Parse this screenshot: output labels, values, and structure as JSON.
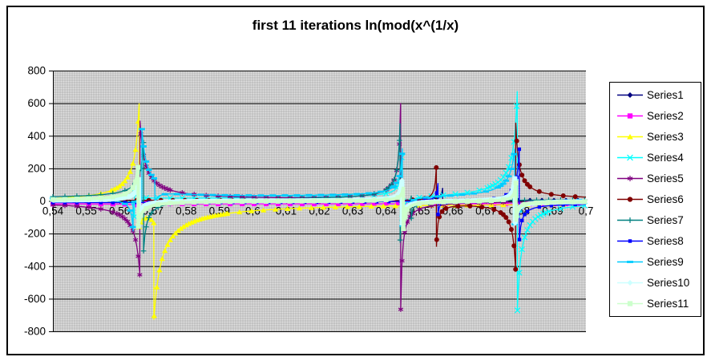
{
  "title": "first 11 iterations ln(mod(x^(1/x)",
  "chart_data": {
    "type": "line",
    "title": "first 11 iterations ln(mod(x^(1/x)",
    "legend_position": "right",
    "grid": "horizontal",
    "plot_bg_color": "#c2c2c2",
    "sampling_step": 0.0004,
    "x_axis": {
      "min": 0.54,
      "max": 0.7,
      "ticks": [
        {
          "v": 0.54,
          "label": "0,54"
        },
        {
          "v": 0.55,
          "label": "0,55"
        },
        {
          "v": 0.56,
          "label": "0,56"
        },
        {
          "v": 0.57,
          "label": "0,57"
        },
        {
          "v": 0.58,
          "label": "0,58"
        },
        {
          "v": 0.59,
          "label": "0,59"
        },
        {
          "v": 0.6,
          "label": "0,6"
        },
        {
          "v": 0.61,
          "label": "0,61"
        },
        {
          "v": 0.62,
          "label": "0,62"
        },
        {
          "v": 0.63,
          "label": "0,63"
        },
        {
          "v": 0.64,
          "label": "0,64"
        },
        {
          "v": 0.65,
          "label": "0,65"
        },
        {
          "v": 0.66,
          "label": "0,66"
        },
        {
          "v": 0.67,
          "label": "0,67"
        },
        {
          "v": 0.68,
          "label": "0,68"
        },
        {
          "v": 0.69,
          "label": "0,69"
        },
        {
          "v": 0.7,
          "label": "0,7"
        }
      ]
    },
    "y_axis": {
      "min": -800,
      "max": 800,
      "ticks": [
        {
          "v": 800,
          "label": "800"
        },
        {
          "v": 600,
          "label": "600"
        },
        {
          "v": 400,
          "label": "400"
        },
        {
          "v": 200,
          "label": "200"
        },
        {
          "v": 0,
          "label": "0"
        },
        {
          "v": -200,
          "label": "-200"
        },
        {
          "v": -400,
          "label": "-400"
        },
        {
          "v": -600,
          "label": "-600"
        },
        {
          "v": -800,
          "label": "-800"
        }
      ]
    },
    "series": [
      {
        "name": "Series1",
        "color": "#000080",
        "marker": "diamond",
        "width": 1.3,
        "baseline": 4,
        "spikes": [
          {
            "x": 0.657,
            "left": 80,
            "right": -50,
            "w": 0.0004
          }
        ]
      },
      {
        "name": "Series2",
        "color": "#FF00FF",
        "marker": "square",
        "width": 1.3,
        "baseline": -18,
        "spikes": [
          {
            "x": 0.5664,
            "left": -40,
            "right": 20,
            "w": 0.0002
          }
        ]
      },
      {
        "name": "Series3",
        "color": "#FFFF00",
        "marker": "triangle",
        "width": 1.3,
        "baseline": -8,
        "spikes": [
          {
            "x": 0.5659,
            "left": 650,
            "right": -120,
            "w": 0.0013
          },
          {
            "x": 0.5703,
            "left": -100,
            "right": -700,
            "w": 0.0022
          }
        ]
      },
      {
        "name": "Series4",
        "color": "#00FFFF",
        "marker": "x",
        "width": 1.3,
        "baseline": 8,
        "spikes": [
          {
            "x": 0.5645,
            "left": -120,
            "right": 40,
            "w": 0.0003
          },
          {
            "x": 0.6447,
            "left": 250,
            "right": -170,
            "w": 0.0004
          },
          {
            "x": 0.6794,
            "left": 680,
            "right": -690,
            "w": 0.0011
          }
        ]
      },
      {
        "name": "Series5",
        "color": "#800080",
        "marker": "asterisk",
        "width": 1.3,
        "baseline": -4,
        "spikes": [
          {
            "x": 0.5661,
            "left": -460,
            "right": 500,
            "w": 0.0014
          },
          {
            "x": 0.6444,
            "left": 620,
            "right": -670,
            "w": 0.0005
          }
        ]
      },
      {
        "name": "Series6",
        "color": "#800000",
        "marker": "circle",
        "width": 1.3,
        "baseline": 6,
        "spikes": [
          {
            "x": 0.6551,
            "left": 225,
            "right": -285,
            "w": 0.0004
          },
          {
            "x": 0.6789,
            "left": -430,
            "right": 490,
            "w": 0.0009
          }
        ]
      },
      {
        "name": "Series7",
        "color": "#008080",
        "marker": "plus",
        "width": 1.3,
        "baseline": 12,
        "spikes": [
          {
            "x": 0.5672,
            "left": 350,
            "right": -330,
            "w": 0.0009
          },
          {
            "x": 0.6442,
            "left": 480,
            "right": -260,
            "w": 0.0006
          },
          {
            "x": 0.6476,
            "left": 70,
            "right": -75,
            "w": 0.0002
          }
        ]
      },
      {
        "name": "Series8",
        "color": "#0000FF",
        "marker": "square_small",
        "width": 1.3,
        "baseline": -12,
        "spikes": [
          {
            "x": 0.6556,
            "left": 120,
            "right": -80,
            "w": 0.0003
          },
          {
            "x": 0.68,
            "left": 340,
            "right": -230,
            "w": 0.0007
          }
        ]
      },
      {
        "name": "Series9",
        "color": "#00CCFF",
        "marker": "dash",
        "width": 1.3,
        "baseline": 16,
        "spikes": [
          {
            "x": 0.5641,
            "left": -210,
            "right": -30,
            "w": 0.0005
          },
          {
            "x": 0.5667,
            "left": -20,
            "right": 430,
            "w": 0.0014
          },
          {
            "x": 0.5706,
            "left": 0,
            "right": -140,
            "w": 0.0018
          },
          {
            "x": 0.6449,
            "left": 300,
            "right": -190,
            "w": 0.0006
          },
          {
            "x": 0.6786,
            "left": 310,
            "right": -160,
            "w": 0.0014
          }
        ]
      },
      {
        "name": "Series10",
        "color": "#CCFFFF",
        "marker": "diamond",
        "width": 6,
        "baseline": 0,
        "spikes": [
          {
            "x": 0.5658,
            "left": 150,
            "right": -120,
            "w": 0.0006
          },
          {
            "x": 0.6448,
            "left": 130,
            "right": -150,
            "w": 0.0005
          },
          {
            "x": 0.6787,
            "left": 160,
            "right": -140,
            "w": 0.0005
          }
        ]
      },
      {
        "name": "Series11",
        "color": "#CCFFCC",
        "marker": "square",
        "width": 4,
        "baseline": 0,
        "spikes": [
          {
            "x": 0.5656,
            "left": 210,
            "right": -160,
            "w": 0.001
          },
          {
            "x": 0.6452,
            "left": 90,
            "right": -170,
            "w": 0.0005
          },
          {
            "x": 0.679,
            "left": 120,
            "right": -130,
            "w": 0.0004
          }
        ]
      }
    ]
  }
}
